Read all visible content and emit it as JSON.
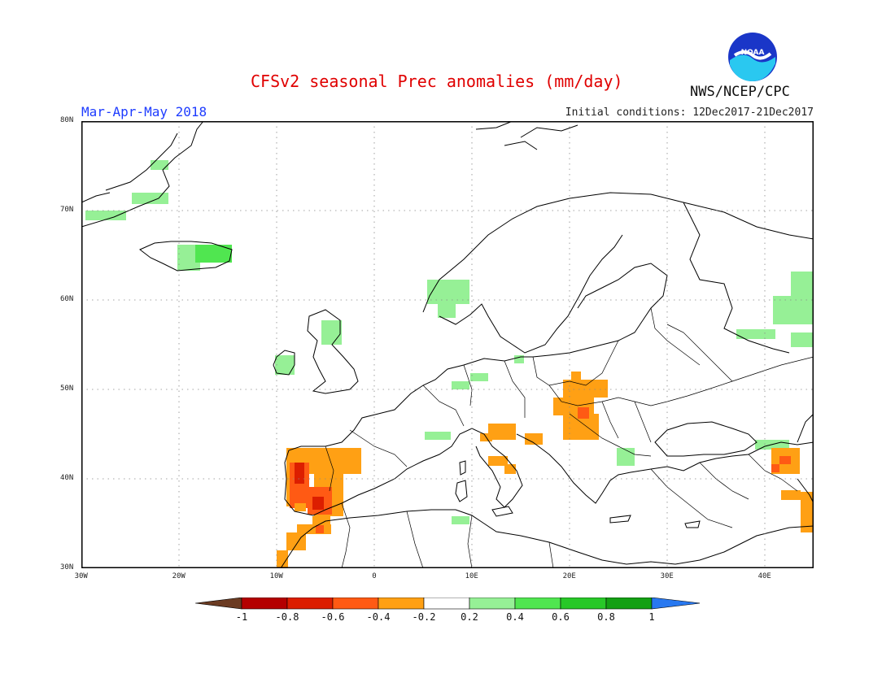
{
  "header": {
    "title": "CFSv2 seasonal Prec anomalies (mm/day)",
    "season": "Mar-Apr-May 2018",
    "initial_conditions": "Initial conditions: 12Dec2017-21Dec2017",
    "agency": "NWS/NCEP/CPC",
    "logo_text": "NOAA"
  },
  "map": {
    "projection": "lat-lon",
    "lon_range": [
      -30,
      45
    ],
    "lat_range": [
      30,
      80
    ],
    "x_ticks": [
      "30W",
      "20W",
      "10W",
      "0",
      "10E",
      "20E",
      "30E",
      "40E"
    ],
    "y_ticks": [
      "80N",
      "70N",
      "60N",
      "50N",
      "40N",
      "30N"
    ],
    "grid": "dotted",
    "anomaly_cells_positive": [
      {
        "region": "Greenland east coast",
        "lon": -28,
        "lat": 69.5,
        "level": "0.2-0.4"
      },
      {
        "region": "Greenland east coast",
        "lon": -26,
        "lat": 69.5,
        "level": "0.2-0.4"
      },
      {
        "region": "Greenland east coast",
        "lon": -23,
        "lat": 71,
        "level": "0.2-0.4"
      },
      {
        "region": "Greenland east coast",
        "lon": -22,
        "lat": 75,
        "level": "0.2-0.4"
      },
      {
        "region": "Iceland",
        "lon": -20,
        "lat": 64.5,
        "level": "0.2-0.4"
      },
      {
        "region": "Iceland",
        "lon": -17,
        "lat": 65,
        "level": "0.4-0.6"
      },
      {
        "region": "Ireland",
        "lon": -9,
        "lat": 52.5,
        "level": "0.2-0.4"
      },
      {
        "region": "Scotland",
        "lon": -4.5,
        "lat": 57,
        "level": "0.2-0.4"
      },
      {
        "region": "Norway",
        "lon": 7,
        "lat": 61,
        "level": "0.2-0.4"
      },
      {
        "region": "Poland coast",
        "lon": 15,
        "lat": 53,
        "level": "0.2-0.4"
      },
      {
        "region": "Germany",
        "lon": 9,
        "lat": 50,
        "level": "0.2-0.4"
      },
      {
        "region": "Alps",
        "lon": 6,
        "lat": 45,
        "level": "0.2-0.4"
      },
      {
        "region": "Tunisia",
        "lon": 9,
        "lat": 36,
        "level": "0.2-0.4"
      },
      {
        "region": "Romania",
        "lon": 26,
        "lat": 42,
        "level": "0.2-0.4"
      },
      {
        "region": "Russia",
        "lon": 40,
        "lat": 58,
        "level": "0.2-0.4"
      },
      {
        "region": "Caucasus",
        "lon": 40,
        "lat": 44,
        "level": "0.2-0.4"
      }
    ],
    "anomaly_cells_negative": [
      {
        "region": "Iberia",
        "lon": -7,
        "lat": 40,
        "level": "-0.6--0.8"
      },
      {
        "region": "Iberia",
        "lon": -5,
        "lat": 39,
        "level": "-0.4--0.6"
      },
      {
        "region": "Iberia",
        "lon": -4,
        "lat": 41,
        "level": "-0.2--0.4"
      },
      {
        "region": "Morocco",
        "lon": -7,
        "lat": 33,
        "level": "-0.2--0.4"
      },
      {
        "region": "Balkans/Hungary",
        "lon": 21,
        "lat": 47,
        "level": "-0.2--0.4"
      },
      {
        "region": "Adriatic",
        "lon": 13,
        "lat": 45,
        "level": "-0.2--0.4"
      },
      {
        "region": "Italy",
        "lon": 14,
        "lat": 41,
        "level": "-0.2--0.4"
      },
      {
        "region": "Caucasus",
        "lon": 43,
        "lat": 41,
        "level": "-0.4--0.6"
      },
      {
        "region": "Middle East",
        "lon": 44,
        "lat": 37,
        "level": "-0.2--0.4"
      }
    ]
  },
  "colorbar": {
    "labels": [
      "-1",
      "-0.8",
      "-0.6",
      "-0.4",
      "-0.2",
      "0.2",
      "0.4",
      "0.6",
      "0.8",
      "1"
    ],
    "colors": [
      "#6b3b22",
      "#b40000",
      "#dc1e00",
      "#ff5a14",
      "#ffa014",
      "#ffffff",
      "#96f096",
      "#50e650",
      "#28c828",
      "#14a014",
      "#2878f0"
    ]
  }
}
